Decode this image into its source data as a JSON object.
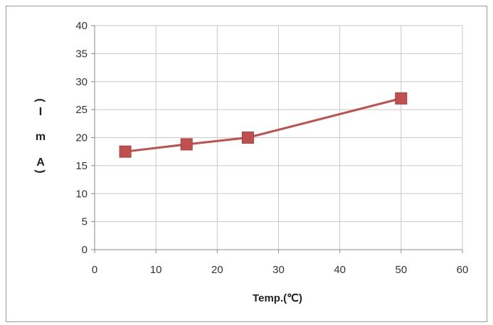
{
  "chart_data": {
    "type": "line",
    "title": "",
    "xlabel": "Temp.(℃)",
    "ylabel_chars": [
      "(",
      "I",
      "m",
      "A",
      ")"
    ],
    "xlim": [
      0,
      60
    ],
    "ylim": [
      0,
      40
    ],
    "x_ticks": [
      0,
      10,
      20,
      30,
      40,
      50,
      60
    ],
    "y_ticks": [
      0,
      5,
      10,
      15,
      20,
      25,
      30,
      35,
      40
    ],
    "grid": true,
    "legend": "none",
    "series": [
      {
        "x": [
          5,
          15,
          25,
          50
        ],
        "y": [
          17.5,
          18.8,
          20,
          27
        ],
        "color": "#c0504d",
        "marker": "square"
      }
    ]
  }
}
